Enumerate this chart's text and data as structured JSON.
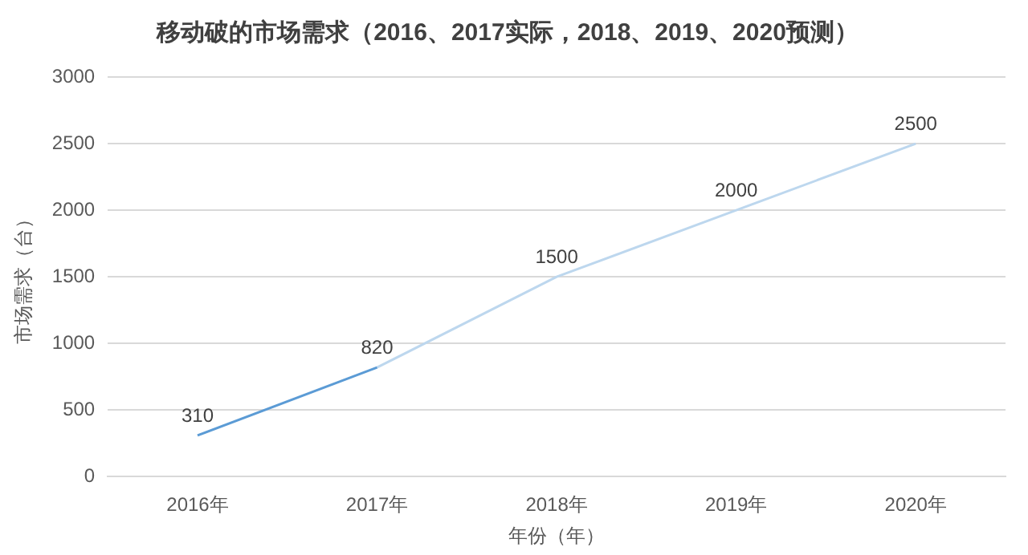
{
  "chart_data": {
    "type": "line",
    "title": "移动破的市场需求（2016、2017实际，2018、2019、2020预测）",
    "xlabel": "年份（年）",
    "ylabel": "市场需求（台）",
    "categories": [
      "2016年",
      "2017年",
      "2018年",
      "2019年",
      "2020年"
    ],
    "series": [
      {
        "color": "#5b9bd5",
        "values": [
          310,
          820,
          null,
          null,
          null
        ],
        "value_labels": [
          "310",
          "820",
          null,
          null,
          null
        ]
      },
      {
        "color": "#bdd7ee",
        "values": [
          null,
          820,
          1500,
          2000,
          2500
        ],
        "value_labels": [
          null,
          null,
          "1500",
          "2000",
          "2500"
        ]
      }
    ],
    "ylim": [
      0,
      3000
    ],
    "yticks": [
      0,
      500,
      1000,
      1500,
      2000,
      2500,
      3000
    ],
    "grid": "y",
    "legend": false,
    "marker": "none",
    "line_style": "solid"
  }
}
